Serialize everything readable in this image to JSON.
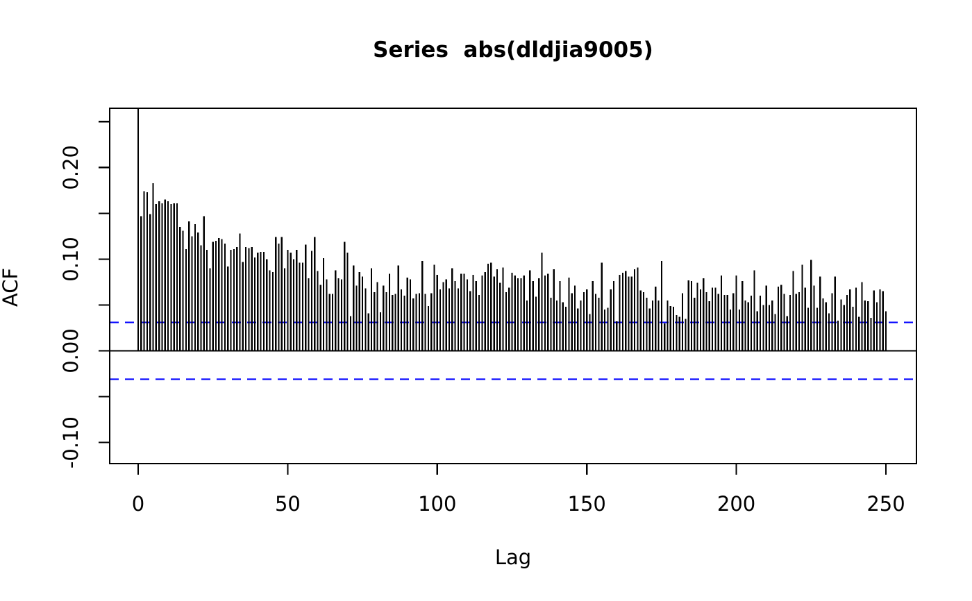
{
  "chart_data": {
    "type": "bar",
    "title": "Series  abs(dldjia9005)",
    "xlabel": "Lag",
    "ylabel": "ACF",
    "x_ticks": [
      0,
      50,
      100,
      150,
      200,
      250
    ],
    "y_ticks": [
      {
        "v": -0.1,
        "label": "-0.10"
      },
      {
        "v": -0.05,
        "label": ""
      },
      {
        "v": 0.0,
        "label": "0.00"
      },
      {
        "v": 0.05,
        "label": ""
      },
      {
        "v": 0.1,
        "label": "0.10"
      },
      {
        "v": 0.15,
        "label": ""
      },
      {
        "v": 0.2,
        "label": "0.20"
      },
      {
        "v": 0.25,
        "label": ""
      }
    ],
    "xlim": [
      0,
      250
    ],
    "ylim": [
      -0.123,
      0.265
    ],
    "grid": false,
    "legend": "none",
    "confidence_bound": 0.031,
    "zero_line": 0.0,
    "colors": {
      "bar": "#000000",
      "axis": "#000000",
      "confidence_line": "#0000FF",
      "background": "#FFFFFF",
      "text": "#000000"
    },
    "series_name": "abs(dldjia9005)",
    "x_start_lag": 0,
    "values": [
      1.0,
      0.147,
      0.174,
      0.173,
      0.149,
      0.183,
      0.16,
      0.163,
      0.161,
      0.165,
      0.163,
      0.16,
      0.161,
      0.161,
      0.135,
      0.131,
      0.111,
      0.141,
      0.125,
      0.138,
      0.129,
      0.115,
      0.147,
      0.11,
      0.09,
      0.119,
      0.12,
      0.123,
      0.122,
      0.117,
      0.092,
      0.11,
      0.111,
      0.113,
      0.128,
      0.097,
      0.113,
      0.112,
      0.113,
      0.102,
      0.107,
      0.108,
      0.108,
      0.1,
      0.088,
      0.086,
      0.124,
      0.117,
      0.124,
      0.09,
      0.11,
      0.107,
      0.1,
      0.11,
      0.096,
      0.096,
      0.116,
      0.079,
      0.109,
      0.124,
      0.087,
      0.072,
      0.101,
      0.078,
      0.062,
      0.062,
      0.088,
      0.079,
      0.078,
      0.119,
      0.107,
      0.038,
      0.093,
      0.071,
      0.086,
      0.081,
      0.068,
      0.041,
      0.09,
      0.064,
      0.075,
      0.042,
      0.071,
      0.064,
      0.084,
      0.061,
      0.062,
      0.093,
      0.067,
      0.06,
      0.08,
      0.078,
      0.057,
      0.062,
      0.063,
      0.098,
      0.062,
      0.049,
      0.063,
      0.094,
      0.083,
      0.067,
      0.075,
      0.078,
      0.068,
      0.09,
      0.076,
      0.068,
      0.084,
      0.084,
      0.078,
      0.065,
      0.083,
      0.076,
      0.061,
      0.082,
      0.086,
      0.095,
      0.096,
      0.081,
      0.089,
      0.074,
      0.091,
      0.064,
      0.069,
      0.085,
      0.082,
      0.079,
      0.079,
      0.082,
      0.055,
      0.088,
      0.076,
      0.059,
      0.079,
      0.107,
      0.082,
      0.084,
      0.058,
      0.089,
      0.055,
      0.076,
      0.053,
      0.048,
      0.08,
      0.063,
      0.071,
      0.046,
      0.055,
      0.064,
      0.067,
      0.04,
      0.076,
      0.062,
      0.058,
      0.096,
      0.045,
      0.047,
      0.067,
      0.076,
      0.032,
      0.083,
      0.085,
      0.087,
      0.081,
      0.081,
      0.089,
      0.091,
      0.066,
      0.064,
      0.058,
      0.046,
      0.055,
      0.07,
      0.055,
      0.098,
      0.03,
      0.055,
      0.049,
      0.048,
      0.039,
      0.037,
      0.063,
      0.035,
      0.077,
      0.076,
      0.058,
      0.074,
      0.067,
      0.079,
      0.064,
      0.054,
      0.069,
      0.069,
      0.062,
      0.082,
      0.061,
      0.061,
      0.045,
      0.063,
      0.082,
      0.045,
      0.076,
      0.055,
      0.053,
      0.06,
      0.088,
      0.043,
      0.06,
      0.05,
      0.071,
      0.05,
      0.055,
      0.04,
      0.07,
      0.072,
      0.062,
      0.038,
      0.061,
      0.087,
      0.062,
      0.064,
      0.094,
      0.069,
      0.047,
      0.099,
      0.071,
      0.047,
      0.081,
      0.057,
      0.053,
      0.041,
      0.063,
      0.081,
      0.033,
      0.056,
      0.05,
      0.061,
      0.067,
      0.048,
      0.069,
      0.037,
      0.075,
      0.055,
      0.054,
      0.036,
      0.066,
      0.053,
      0.067,
      0.065,
      0.043
    ]
  }
}
